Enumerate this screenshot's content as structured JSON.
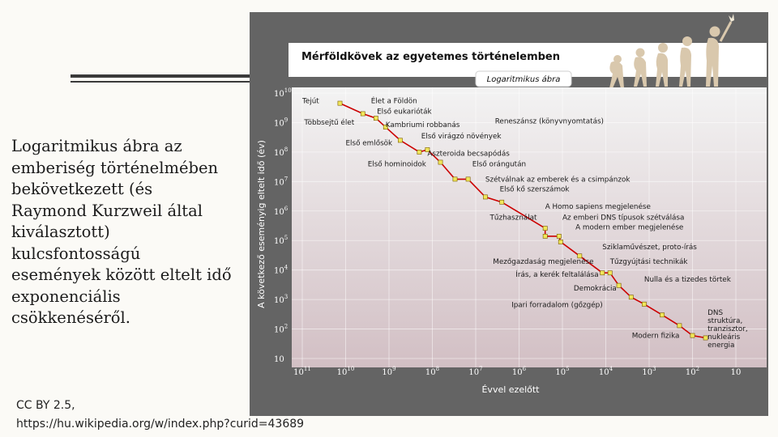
{
  "slide": {
    "caption": "Logaritmikus ábra az emberiség történelmében bekövetkezett (és Raymond Kurzweil által kiválasztott) kulcsfontosságú események között eltelt idő exponenciális csökkenéséről.",
    "credit_line1": "CC BY 2.5,",
    "credit_line2": "https://hu.wikipedia.org/w/index.php?curid=43689"
  },
  "chart_data": {
    "type": "scatter",
    "title": "Mérföldkövek az egyetemes történelemben",
    "subtitle": "Logaritmikus ábra",
    "xlabel": "Évvel ezelőtt",
    "ylabel": "A következő eseményig eltelt idő (év)",
    "x_scale": "log",
    "y_scale": "log",
    "x_reversed": true,
    "xlim": [
      100000000000,
      10
    ],
    "ylim": [
      10,
      10000000000
    ],
    "x_ticks": [
      {
        "v": 100000000000,
        "base": "10",
        "exp": "11"
      },
      {
        "v": 10000000000,
        "base": "10",
        "exp": "10"
      },
      {
        "v": 1000000000,
        "base": "10",
        "exp": "9"
      },
      {
        "v": 100000000,
        "base": "10",
        "exp": "8"
      },
      {
        "v": 10000000,
        "base": "10",
        "exp": "7"
      },
      {
        "v": 1000000,
        "base": "10",
        "exp": "6"
      },
      {
        "v": 100000,
        "base": "10",
        "exp": "5"
      },
      {
        "v": 10000,
        "base": "10",
        "exp": "4"
      },
      {
        "v": 1000,
        "base": "10",
        "exp": "3"
      },
      {
        "v": 100,
        "base": "10",
        "exp": "2"
      },
      {
        "v": 10,
        "base": "10",
        "exp": ""
      }
    ],
    "y_ticks": [
      {
        "v": 10000000000,
        "base": "10",
        "exp": "10"
      },
      {
        "v": 1000000000,
        "base": "10",
        "exp": "9"
      },
      {
        "v": 100000000,
        "base": "10",
        "exp": "8"
      },
      {
        "v": 10000000,
        "base": "10",
        "exp": "7"
      },
      {
        "v": 1000000,
        "base": "10",
        "exp": "6"
      },
      {
        "v": 100000,
        "base": "10",
        "exp": "5"
      },
      {
        "v": 10000,
        "base": "10",
        "exp": "4"
      },
      {
        "v": 1000,
        "base": "10",
        "exp": "3"
      },
      {
        "v": 100,
        "base": "10",
        "exp": "2"
      },
      {
        "v": 10,
        "base": "10",
        "exp": ""
      }
    ],
    "line_color": "#cc0000",
    "marker_color": "#f0e65a",
    "points": [
      {
        "x": 13500000000,
        "y": 4500000000
      },
      {
        "x": 4000000000,
        "y": 2000000000
      },
      {
        "x": 2000000000,
        "y": 1400000000
      },
      {
        "x": 1200000000,
        "y": 700000000
      },
      {
        "x": 550000000,
        "y": 250000000
      },
      {
        "x": 200000000,
        "y": 100000000
      },
      {
        "x": 130000000,
        "y": 120000000
      },
      {
        "x": 65000000,
        "y": 45000000
      },
      {
        "x": 30000000,
        "y": 12000000
      },
      {
        "x": 15000000,
        "y": 12000000
      },
      {
        "x": 6000000,
        "y": 3000000
      },
      {
        "x": 2500000,
        "y": 2000000
      },
      {
        "x": 250000,
        "y": 260000
      },
      {
        "x": 250000,
        "y": 140000
      },
      {
        "x": 120000,
        "y": 140000
      },
      {
        "x": 110000,
        "y": 90000
      },
      {
        "x": 40000,
        "y": 30000
      },
      {
        "x": 12000,
        "y": 8000
      },
      {
        "x": 8000,
        "y": 8000
      },
      {
        "x": 5000,
        "y": 3000
      },
      {
        "x": 2600,
        "y": 1200
      },
      {
        "x": 1300,
        "y": 700
      },
      {
        "x": 500,
        "y": 300
      },
      {
        "x": 200,
        "y": 130
      },
      {
        "x": 100,
        "y": 60
      },
      {
        "x": 50,
        "y": 50
      }
    ],
    "annotations": [
      {
        "text": "Tejút",
        "x": 100000000000,
        "y": 4500000000
      },
      {
        "text": "Élet a Földön",
        "x": 2600000000,
        "y": 4500000000
      },
      {
        "text": "Első eukarióták",
        "x": 1900000000,
        "y": 2000000000
      },
      {
        "text": "Többsejtű élet",
        "x": 90000000000,
        "y": 850000000
      },
      {
        "text": "Kambriumi robbanás",
        "x": 1200000000,
        "y": 700000000
      },
      {
        "text": "Első virágzó növények",
        "x": 180000000,
        "y": 290000000
      },
      {
        "text": "Első emlősök",
        "x": 10000000000,
        "y": 170000000
      },
      {
        "text": "Aszteroida becsapódás",
        "x": 130000000,
        "y": 75000000
      },
      {
        "text": "Első hominoidok",
        "x": 3100000000,
        "y": 33000000
      },
      {
        "text": "Első orángután",
        "x": 12000000,
        "y": 33000000
      },
      {
        "text": "Szétválnak az emberek és a csimpánzok",
        "x": 6000000,
        "y": 10000000
      },
      {
        "text": "Első kő szerszámok",
        "x": 2800000,
        "y": 4700000
      },
      {
        "text": "A Homo sapiens megjelenése",
        "x": 250000,
        "y": 1200000
      },
      {
        "text": "Tűzhasználat",
        "x": 4700000,
        "y": 500000
      },
      {
        "text": "Az emberi DNS típusok szétválása",
        "x": 100000,
        "y": 500000
      },
      {
        "text": "A modern ember megjelenése",
        "x": 50000,
        "y": 240000
      },
      {
        "text": "Sziklaművészet, proto-írás",
        "x": 12000,
        "y": 50000
      },
      {
        "text": "Mezőgazdaság megjelenése",
        "x": 4000000,
        "y": 16000
      },
      {
        "text": "Tűzgyújtási technikák",
        "x": 8000,
        "y": 16000
      },
      {
        "text": "Írás, a kerék feltalálása",
        "x": 1200000,
        "y": 6000
      },
      {
        "text": "Nulla és a tizedes törtek",
        "x": 1300,
        "y": 4000
      },
      {
        "text": "Demokrácia",
        "x": 55000,
        "y": 2000
      },
      {
        "text": "Reneszánsz (könyvnyomtatás)",
        "x": 3600000,
        "y": 950000000
      },
      {
        "text": "Ipari forradalom (gőzgép)",
        "x": 1500000,
        "y": 550
      },
      {
        "text": "DNS struktúra, tranzisztor, nukleáris energia",
        "x": 45,
        "y": 300
      },
      {
        "text": "Modern fizika",
        "x": 2500,
        "y": 50
      }
    ]
  }
}
